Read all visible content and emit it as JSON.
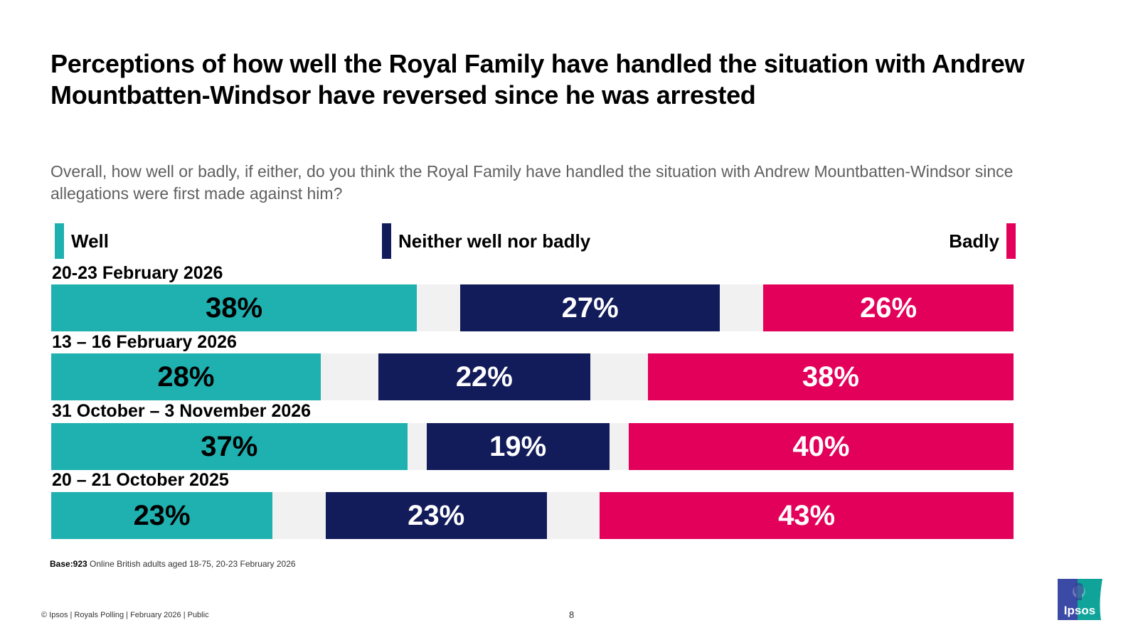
{
  "title": "Perceptions of how well the Royal Family have handled the situation with Andrew Mountbatten-Windsor have reversed since he was arrested",
  "question": "Overall, how well or badly, if either, do you think the Royal Family have handled the situation with Andrew Mountbatten-Windsor since allegations were first made against him?",
  "legend": {
    "well": "Well",
    "neither": "Neither well nor badly",
    "badly": "Badly"
  },
  "colors": {
    "well": "#1fb0b0",
    "neither": "#131c5a",
    "badly": "#e3005a",
    "other": "#f1f1f1",
    "well_text": "#000000",
    "neither_text": "#ffffff",
    "badly_text": "#ffffff"
  },
  "chart_data": {
    "type": "bar",
    "orientation": "horizontal-stacked",
    "title": "Perceptions of how well the Royal Family have handled the situation with Andrew Mountbatten-Windsor have reversed since he was arrested",
    "xlabel": "",
    "ylabel": "",
    "xlim": [
      0,
      100
    ],
    "grid": false,
    "legend_position": "top",
    "categories": [
      "20-23 February 2026",
      "13 – 16 February 2026",
      "31 October – 3 November 2026",
      "20 – 21 October 2025"
    ],
    "series": [
      {
        "name": "Well",
        "values": [
          38,
          28,
          37,
          23
        ]
      },
      {
        "name": "Neither well nor badly",
        "values": [
          27,
          22,
          19,
          23
        ]
      },
      {
        "name": "Badly",
        "values": [
          26,
          38,
          40,
          43
        ]
      }
    ],
    "labels": [
      {
        "well": "38%",
        "neither": "27%",
        "badly": "26%"
      },
      {
        "well": "28%",
        "neither": "22%",
        "badly": "38%"
      },
      {
        "well": "37%",
        "neither": "19%",
        "badly": "40%"
      },
      {
        "well": "23%",
        "neither": "23%",
        "badly": "43%"
      }
    ]
  },
  "base": {
    "label": "Base:923",
    "text": " Online British adults aged 18-75, 20-23 February 2026"
  },
  "footer": "© Ipsos | Royals Polling | February 2026 | Public",
  "page_number": "8",
  "logo_text": "Ipsos"
}
